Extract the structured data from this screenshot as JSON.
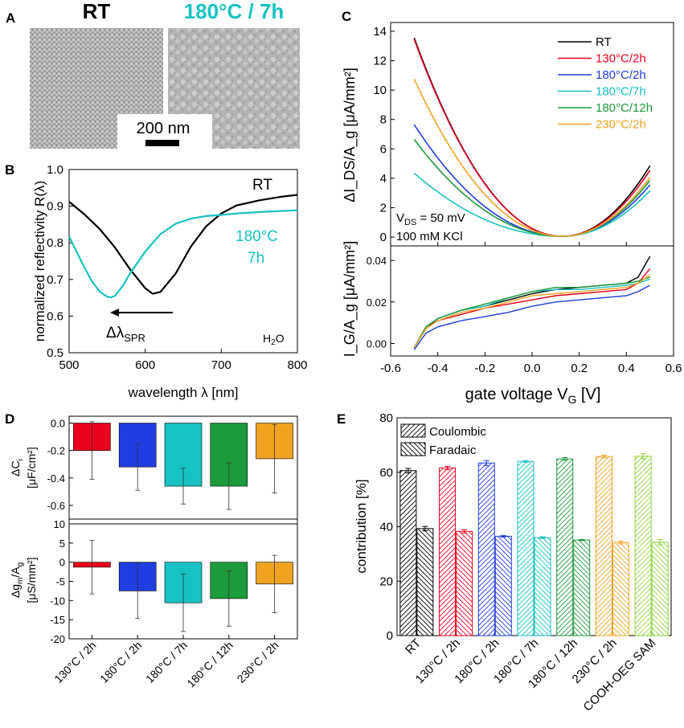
{
  "colors": {
    "rt": "#000000",
    "c130": "#e8001c",
    "c180_2h": "#1f3de0",
    "c180_7h": "#16c2c2",
    "c180_12h": "#1c9a3c",
    "c230": "#f0a321",
    "sam": "#8fd63a"
  },
  "panel_a": {
    "label": "A",
    "title_rt": "RT",
    "title_annealed": "180°C / 7h",
    "scale_bar": "200 nm"
  },
  "chart_data": [
    {
      "id": "B",
      "panel_label": "B",
      "type": "line",
      "xlabel": "wavelength λ [nm]",
      "ylabel": "normalized reflectivity R(λ)",
      "xlim": [
        500,
        800
      ],
      "ylim": [
        0.5,
        1.0
      ],
      "xticks": [
        "500",
        "600",
        "700",
        "800"
      ],
      "yticks": [
        "0.5",
        "0.6",
        "0.7",
        "0.8",
        "0.9",
        "1.0"
      ],
      "series": [
        {
          "name": "RT",
          "x": [
            500,
            520,
            540,
            560,
            580,
            600,
            610,
            620,
            640,
            660,
            680,
            700,
            720,
            750,
            780,
            800
          ],
          "y": [
            0.912,
            0.878,
            0.838,
            0.788,
            0.728,
            0.676,
            0.661,
            0.666,
            0.716,
            0.79,
            0.845,
            0.88,
            0.902,
            0.916,
            0.926,
            0.931
          ]
        },
        {
          "name": "180°C 7h",
          "x": [
            500,
            510,
            520,
            530,
            540,
            550,
            555,
            560,
            570,
            580,
            600,
            620,
            640,
            660,
            680,
            700,
            720,
            750,
            780,
            800
          ],
          "y": [
            0.817,
            0.775,
            0.733,
            0.695,
            0.667,
            0.653,
            0.651,
            0.655,
            0.681,
            0.716,
            0.776,
            0.824,
            0.852,
            0.866,
            0.873,
            0.876,
            0.88,
            0.884,
            0.887,
            0.889
          ]
        }
      ],
      "annotations": {
        "rt": "RT",
        "annealed_1": "180°C",
        "annealed_2": "7h",
        "shift": "Δλ",
        "shift_sub": "SPR",
        "medium": "H",
        "medium_sub": "2",
        "medium_end": "O"
      }
    },
    {
      "id": "C",
      "panel_label": "C",
      "type": "line",
      "xlabel": "gate voltage V",
      "xlabel_sub": "G",
      "xlabel_unit": " [V]",
      "xlim": [
        -0.6,
        0.6
      ],
      "xticks": [
        "-0.6",
        "-0.4",
        "-0.2",
        "0.0",
        "0.2",
        "0.4",
        "0.6"
      ],
      "top": {
        "ylabel": "ΔI_DS/A_g [μA/mm²]",
        "ylim": [
          -0.6,
          14.6
        ],
        "yticks": [
          "0",
          "2",
          "4",
          "6",
          "8",
          "10",
          "12",
          "14"
        ],
        "vds_label": "V",
        "vds_sub": "DS",
        "vds_value": " = 50 mV",
        "kcl_label": "100 mM KCl",
        "v0": 0.13,
        "series": [
          {
            "name": "RT",
            "key": "rt",
            "left": 13.5,
            "right": 4.8
          },
          {
            "name": "130°C/2h",
            "key": "c130",
            "left": 13.4,
            "right": 4.5
          },
          {
            "name": "180°C/2h",
            "key": "c180_2h",
            "left": 7.6,
            "right": 3.5
          },
          {
            "name": "180°C/7h",
            "key": "c180_7h",
            "left": 4.3,
            "right": 3.1
          },
          {
            "name": "180°C/12h",
            "key": "c180_12h",
            "left": 6.6,
            "right": 3.8
          },
          {
            "name": "230°C/2h",
            "key": "c230",
            "left": 10.7,
            "right": 4.0
          }
        ]
      },
      "bottom": {
        "ylabel": "I_G/A_g [μA/mm²]",
        "ylim": [
          -0.006,
          0.047
        ],
        "yticks": [
          "0.00",
          "0.02",
          "0.04"
        ],
        "series": [
          {
            "key": "rt",
            "x": [
              -0.5,
              -0.45,
              -0.4,
              -0.3,
              -0.2,
              -0.1,
              0.0,
              0.1,
              0.2,
              0.3,
              0.4,
              0.45,
              0.5
            ],
            "y": [
              -0.002,
              0.008,
              0.012,
              0.016,
              0.018,
              0.021,
              0.024,
              0.026,
              0.027,
              0.028,
              0.029,
              0.032,
              0.042
            ]
          },
          {
            "key": "c130",
            "x": [
              -0.5,
              -0.45,
              -0.4,
              -0.3,
              -0.2,
              -0.1,
              0.0,
              0.1,
              0.2,
              0.3,
              0.4,
              0.45,
              0.5
            ],
            "y": [
              -0.002,
              0.008,
              0.011,
              0.014,
              0.017,
              0.019,
              0.021,
              0.023,
              0.024,
              0.025,
              0.026,
              0.029,
              0.036
            ]
          },
          {
            "key": "c180_2h",
            "x": [
              -0.5,
              -0.45,
              -0.4,
              -0.3,
              -0.2,
              -0.1,
              0.0,
              0.1,
              0.2,
              0.3,
              0.4,
              0.45,
              0.5
            ],
            "y": [
              -0.003,
              0.005,
              0.008,
              0.011,
              0.013,
              0.015,
              0.018,
              0.02,
              0.021,
              0.022,
              0.023,
              0.025,
              0.028
            ]
          },
          {
            "key": "c180_7h",
            "x": [
              -0.5,
              -0.45,
              -0.4,
              -0.3,
              -0.2,
              -0.1,
              0.0,
              0.1,
              0.2,
              0.3,
              0.4,
              0.45,
              0.5
            ],
            "y": [
              -0.002,
              0.008,
              0.012,
              0.016,
              0.018,
              0.022,
              0.025,
              0.026,
              0.026,
              0.027,
              0.028,
              0.029,
              0.031
            ]
          },
          {
            "key": "c180_12h",
            "x": [
              -0.5,
              -0.45,
              -0.4,
              -0.3,
              -0.2,
              -0.1,
              0.0,
              0.1,
              0.2,
              0.3,
              0.4,
              0.45,
              0.5
            ],
            "y": [
              -0.002,
              0.008,
              0.012,
              0.016,
              0.019,
              0.022,
              0.025,
              0.027,
              0.027,
              0.028,
              0.029,
              0.03,
              0.032
            ]
          },
          {
            "key": "c230",
            "x": [
              -0.5,
              -0.45,
              -0.4,
              -0.3,
              -0.2,
              -0.1,
              0.0,
              0.1,
              0.2,
              0.3,
              0.4,
              0.45,
              0.5
            ],
            "y": [
              -0.002,
              0.007,
              0.011,
              0.015,
              0.017,
              0.02,
              0.023,
              0.024,
              0.025,
              0.026,
              0.027,
              0.029,
              0.033
            ]
          }
        ]
      }
    },
    {
      "id": "D",
      "panel_label": "D",
      "type": "bar",
      "categories": [
        "130°C / 2h",
        "180°C / 2h",
        "180°C / 7h",
        "180°C / 12h",
        "230°C / 2h"
      ],
      "color_keys": [
        "c130",
        "c180_2h",
        "c180_7h",
        "c180_12h",
        "c230"
      ],
      "top": {
        "ylabel_1": "ΔC",
        "ylabel_1_sub": "i",
        "ylabel_2": "[μF/cm²]",
        "ylim": [
          -0.7,
          0.05
        ],
        "yticks": [
          "0.0",
          "-0.2",
          "-0.4",
          "-0.6"
        ],
        "values": [
          -0.2,
          -0.32,
          -0.46,
          -0.46,
          -0.26
        ],
        "errors": [
          0.21,
          0.17,
          0.13,
          0.17,
          0.25
        ]
      },
      "bottom": {
        "ylabel_1": "Δg",
        "ylabel_1_sub": "m",
        "ylabel_1_mid": "/A",
        "ylabel_1_sub2": "g",
        "ylabel_2": "[μS/mm²]",
        "ylim": [
          -20,
          10
        ],
        "yticks": [
          "10",
          "5",
          "0",
          "-5",
          "-10",
          "-15",
          "-20"
        ],
        "values": [
          -1.3,
          -7.5,
          -10.6,
          -9.5,
          -5.7
        ],
        "errors": [
          7.0,
          7.2,
          7.5,
          7.2,
          7.5
        ]
      }
    },
    {
      "id": "E",
      "panel_label": "E",
      "type": "bar",
      "ylabel": "contribution [%]",
      "ylim": [
        0,
        80
      ],
      "yticks": [
        "0",
        "20",
        "40",
        "60",
        "80"
      ],
      "categories": [
        "RT",
        "130°C / 2h",
        "180°C / 2h",
        "180°C / 7h",
        "180°C / 12h",
        "230°C / 2h",
        "COOH-OEG SAM"
      ],
      "color_keys": [
        "rt",
        "c130",
        "c180_2h",
        "c180_7h",
        "c180_12h",
        "c230",
        "sam"
      ],
      "series": [
        {
          "name": "Coulombic",
          "values": [
            60.6,
            61.6,
            63.4,
            64.0,
            64.9,
            65.8,
            65.9
          ],
          "errors": [
            0.8,
            0.6,
            0.9,
            0.3,
            0.5,
            0.5,
            1.0
          ]
        },
        {
          "name": "Faradaic",
          "values": [
            39.3,
            38.3,
            36.5,
            36.0,
            35.1,
            34.2,
            34.3
          ],
          "errors": [
            0.8,
            0.6,
            0.3,
            0.3,
            0.2,
            0.5,
            1.0
          ]
        }
      ]
    }
  ]
}
